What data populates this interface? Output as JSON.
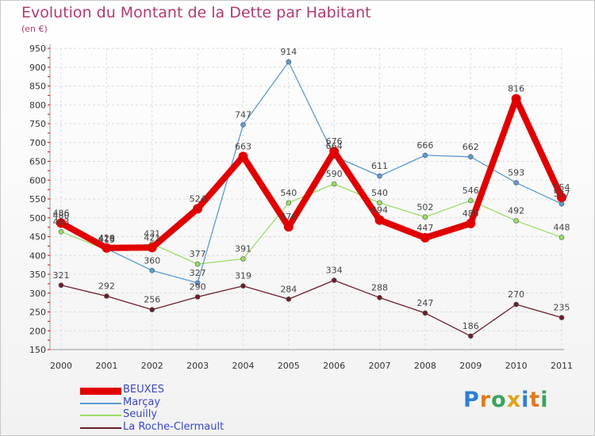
{
  "title": "Evolution du Montant de la Dette par Habitant",
  "unit_label": "(en €)",
  "brand": {
    "letters": [
      "P",
      "r",
      "o",
      "x",
      "i",
      "t",
      "i"
    ],
    "colors": [
      "#2e7fd6",
      "#e27a1e",
      "#3aa35c",
      "#e0a21c",
      "#2e7fd6",
      "#e27a1e",
      "#3aa35c"
    ]
  },
  "chart_data": {
    "type": "line",
    "x": [
      "2000",
      "2001",
      "2002",
      "2003",
      "2004",
      "2005",
      "2006",
      "2007",
      "2008",
      "2009",
      "2010",
      "2011"
    ],
    "ylim": [
      150,
      950
    ],
    "yticks": [
      150,
      200,
      250,
      300,
      350,
      400,
      450,
      500,
      550,
      600,
      650,
      700,
      750,
      800,
      850,
      900,
      950
    ],
    "grid": true,
    "legend_position": "bottom-left",
    "series": [
      {
        "name": "BEUXES",
        "color": "#e00000",
        "values": [
          486,
          420,
          421,
          524,
          663,
          476,
          676,
          494,
          447,
          485,
          816,
          554
        ],
        "labels": [
          "486",
          "420",
          "421",
          "524",
          "663",
          "476",
          "676",
          "494",
          "447",
          "485",
          "816",
          "554"
        ]
      },
      {
        "name": "Marçay",
        "color": "#5b9bd5",
        "values": [
          480,
          418,
          360,
          327,
          747,
          914,
          664,
          611,
          666,
          662,
          593,
          537
        ],
        "labels": [
          "480",
          "418",
          "360",
          "327",
          "747",
          "914",
          "664",
          "611",
          "666",
          "662",
          "593",
          "537"
        ]
      },
      {
        "name": "Seuilly",
        "color": "#99dd66",
        "values": [
          463,
          415,
          431,
          377,
          391,
          540,
          590,
          540,
          502,
          546,
          492,
          448
        ],
        "labels": [
          "463",
          "415",
          "431",
          "377",
          "391",
          "540",
          "590",
          "540",
          "502",
          "546",
          "492",
          "448"
        ]
      },
      {
        "name": "La Roche-Clermault",
        "color": "#6b1e2a",
        "values": [
          321,
          292,
          256,
          290,
          319,
          284,
          334,
          288,
          247,
          186,
          270,
          235
        ],
        "labels": [
          "321",
          "292",
          "256",
          "290",
          "319",
          "284",
          "334",
          "288",
          "247",
          "186",
          "270",
          "235"
        ]
      }
    ]
  }
}
